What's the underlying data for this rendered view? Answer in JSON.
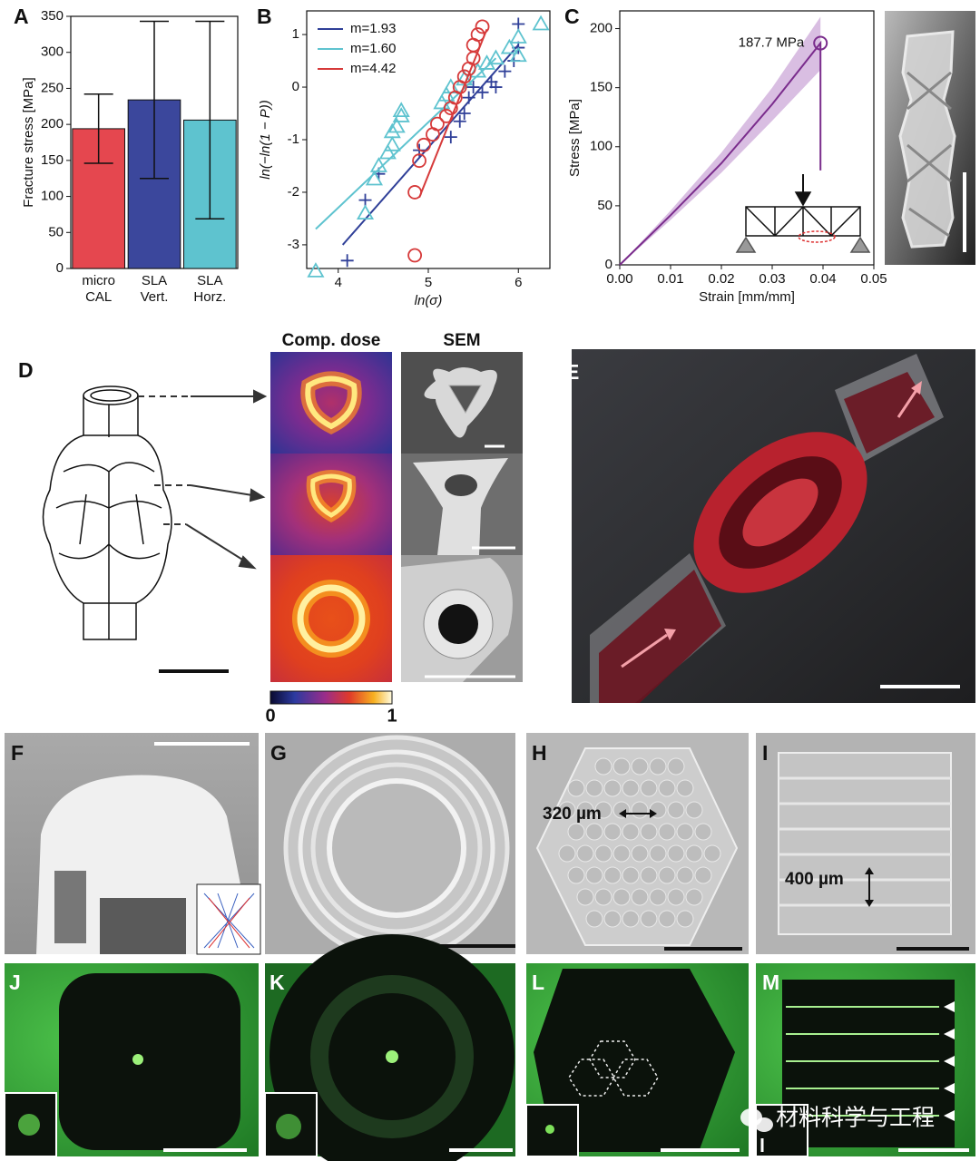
{
  "chart_data": [
    {
      "type": "bar",
      "panel_label": "A",
      "ylabel": "Fracture stress [MPa]",
      "categories": [
        "micro CAL",
        "SLA Vert.",
        "SLA Horz."
      ],
      "values": [
        194,
        234,
        206
      ],
      "errors": [
        48,
        109,
        137
      ],
      "colors": [
        "#e5474f",
        "#3b479c",
        "#5ec3cf"
      ],
      "ylim": [
        0,
        350
      ],
      "yticks": [
        0,
        50,
        100,
        150,
        200,
        250,
        300,
        350
      ]
    },
    {
      "type": "scatter",
      "panel_label": "B",
      "xlabel": "ln(σ)",
      "ylabel": "ln(−ln(1 − P))",
      "xlim": [
        3.65,
        6.35
      ],
      "xticks": [
        4,
        5,
        6
      ],
      "ylim": [
        -3.45,
        1.45
      ],
      "yticks": [
        -3,
        -2,
        -1,
        0,
        1
      ],
      "legend": "upper left",
      "series": [
        {
          "name": "m=1.93",
          "color": "#2f3f98",
          "marker": "plus",
          "x": [
            4.1,
            4.3,
            4.45,
            4.9,
            5.25,
            5.35,
            5.4,
            5.45,
            5.5,
            5.6,
            5.7,
            5.75,
            5.85,
            5.95,
            6.0,
            6.0
          ],
          "values": [
            -3.3,
            -2.15,
            -1.65,
            -1.2,
            -0.95,
            -0.65,
            -0.5,
            -0.2,
            0.0,
            -0.1,
            0.1,
            0.0,
            0.3,
            0.5,
            0.75,
            1.2
          ],
          "fit_x": [
            4.05,
            6.0
          ],
          "fit_y": [
            -3.0,
            0.8
          ]
        },
        {
          "name": "m=1.60",
          "color": "#5ec3cf",
          "marker": "triangle",
          "x": [
            3.75,
            4.3,
            4.4,
            4.45,
            4.55,
            4.6,
            4.6,
            4.65,
            4.7,
            4.7,
            5.15,
            5.2,
            5.25,
            5.4,
            5.55,
            5.65,
            5.75,
            5.9,
            6.0,
            6.0,
            6.25
          ],
          "values": [
            -3.5,
            -2.4,
            -1.75,
            -1.5,
            -1.25,
            -1.1,
            -0.85,
            -0.75,
            -0.55,
            -0.45,
            -0.3,
            -0.15,
            0.0,
            0.15,
            0.3,
            0.45,
            0.55,
            0.75,
            0.95,
            0.6,
            1.2
          ],
          "fit_x": [
            3.75,
            5.75
          ],
          "fit_y": [
            -2.7,
            0.55
          ]
        },
        {
          "name": "m=4.42",
          "color": "#d63a3a",
          "marker": "circle",
          "x": [
            4.85,
            4.85,
            4.9,
            4.95,
            5.05,
            5.1,
            5.2,
            5.25,
            5.3,
            5.35,
            5.4,
            5.45,
            5.5,
            5.5,
            5.55,
            5.6
          ],
          "values": [
            -3.2,
            -2.0,
            -1.4,
            -1.1,
            -0.9,
            -0.7,
            -0.55,
            -0.4,
            -0.2,
            0.0,
            0.2,
            0.35,
            0.55,
            0.8,
            1.0,
            1.15
          ],
          "fit_x": [
            4.9,
            5.65
          ],
          "fit_y": [
            -2.1,
            1.1
          ]
        }
      ]
    },
    {
      "type": "line",
      "panel_label": "C",
      "xlabel": "Strain [mm/mm]",
      "ylabel": "Stress [MPa]",
      "xlim": [
        0,
        0.05
      ],
      "xticks": [
        {
          "value": 0,
          "label": "0.00"
        },
        {
          "value": 0.01,
          "label": "0.01"
        },
        {
          "value": 0.02,
          "label": "0.02"
        },
        {
          "value": 0.03,
          "label": "0.03"
        },
        {
          "value": 0.04,
          "label": "0.04"
        },
        {
          "value": 0.05,
          "label": "0.05"
        }
      ],
      "ylim": [
        0,
        215
      ],
      "yticks": [
        0,
        50,
        100,
        150,
        200
      ],
      "x": [
        0,
        0.01,
        0.02,
        0.03,
        0.0395,
        0.0395
      ],
      "series": [
        {
          "color": "#7a2c8c",
          "values": [
            0,
            42,
            86,
            136,
            187.7,
            80
          ]
        }
      ],
      "band_x": [
        0,
        0.01,
        0.02,
        0.03,
        0.0395
      ],
      "band_lower": [
        0,
        38,
        78,
        122,
        165
      ],
      "band_upper": [
        0,
        46,
        95,
        150,
        210
      ],
      "band_color": "#c9a2d6",
      "annotation": "187.7 MPa",
      "annotation_value": 187.7
    }
  ],
  "figure": {
    "panel_labels": [
      "D",
      "E",
      "F",
      "G",
      "H",
      "I",
      "J",
      "K",
      "L",
      "M"
    ],
    "column_titles": [
      "Comp. dose",
      "SEM"
    ],
    "colorbar_ticks": [
      0,
      1
    ],
    "dimensions": [
      "320 µm",
      "400 µm"
    ],
    "watermark": "材料科学与工程"
  }
}
